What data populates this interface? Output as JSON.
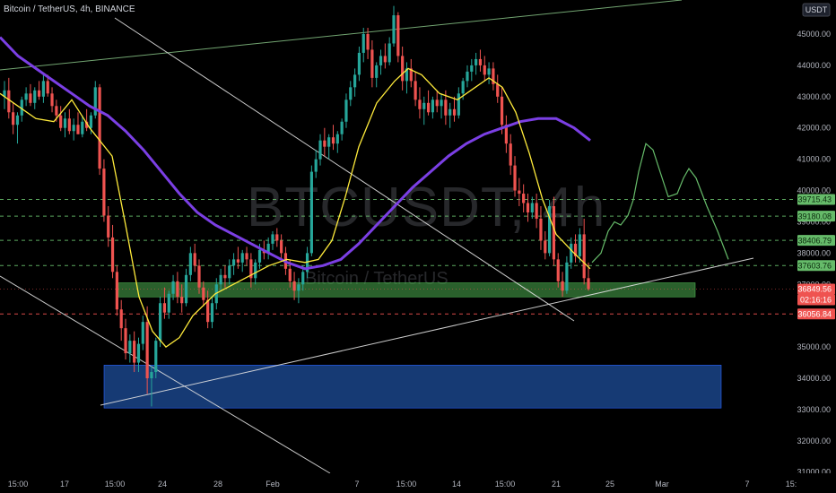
{
  "header": {
    "title": "Bitcoin / TetherUS, 4h, BINANCE",
    "currency": "USDT"
  },
  "watermark": {
    "symbol": "BTCUSDT, 4h",
    "name": "Bitcoin / TetherUS"
  },
  "colors": {
    "bg": "#000000",
    "up": "#26a69a",
    "down": "#ef5350",
    "ema_fast": "#ffeb3b",
    "ema_slow": "#7b3fe4",
    "support": "#4caf50",
    "demand": "#1e4d9b",
    "trend": "#e0e0e0",
    "green_dash": "#66bb6a",
    "red_dash": "#ef5350",
    "projection": "#66bb6a"
  },
  "chart_data": {
    "type": "candlestick",
    "title": "Bitcoin / TetherUS, 4h, BINANCE",
    "y_ticks": [
      31000,
      32000,
      33000,
      34000,
      35000,
      36000,
      37000,
      38000,
      39000,
      40000,
      41000,
      42000,
      43000,
      44000,
      45000
    ],
    "y_tick_labels": [
      "31000.00",
      "32000.00",
      "33000.00",
      "34000.00",
      "35000.00",
      "36000.00",
      "37000.00",
      "38000.00",
      "39000.00",
      "40000.00",
      "41000.00",
      "42000.00",
      "43000.00",
      "44000.00",
      "45000.00"
    ],
    "x_ticks": [
      "15:00",
      "17",
      "15:00",
      "24",
      "28",
      "Feb",
      "7",
      "15:00",
      "14",
      "15:00",
      "21",
      "25",
      "Mar",
      "7",
      "15:"
    ],
    "x_tick_x": [
      20,
      72,
      128,
      181,
      243,
      304,
      398,
      453,
      509,
      563,
      620,
      680,
      738,
      833,
      882
    ],
    "price_labels": [
      {
        "value": "39715.43",
        "type": "green"
      },
      {
        "value": "39180.08",
        "type": "green"
      },
      {
        "value": "38406.79",
        "type": "green"
      },
      {
        "value": "37603.76",
        "type": "green"
      },
      {
        "value": "36849.56",
        "type": "current"
      },
      {
        "value": "02:16:16",
        "type": "countdown"
      },
      {
        "value": "36056.84",
        "type": "red"
      }
    ],
    "levels_dashed": [
      {
        "price": 39715.43,
        "kind": "green"
      },
      {
        "price": 39180.08,
        "kind": "green"
      },
      {
        "price": 38406.79,
        "kind": "green"
      },
      {
        "price": 37603.76,
        "kind": "green"
      },
      {
        "price": 36056.84,
        "kind": "red"
      },
      {
        "price": 36849.56,
        "kind": "current"
      }
    ],
    "zones": [
      {
        "name": "support-zone",
        "from": 36600,
        "to": 37050,
        "x_start": "Jan 21",
        "x_end": "Mar 3",
        "color": "green"
      },
      {
        "name": "demand-zone",
        "from": 33050,
        "to": 34420,
        "x_start": "Jan 21",
        "x_end": "Mar 4",
        "color": "blue"
      }
    ],
    "candles": [
      [
        43000,
        43500,
        42600,
        43200
      ],
      [
        43200,
        43600,
        42300,
        42500
      ],
      [
        42500,
        42800,
        41800,
        42100
      ],
      [
        42100,
        42500,
        41500,
        42400
      ],
      [
        42400,
        43000,
        42200,
        42900
      ],
      [
        42900,
        43300,
        42700,
        43100
      ],
      [
        43100,
        43400,
        42700,
        42800
      ],
      [
        42800,
        43300,
        42600,
        43200
      ],
      [
        43200,
        43500,
        42900,
        43000
      ],
      [
        43000,
        43700,
        42800,
        43500
      ],
      [
        43500,
        43700,
        43000,
        43100
      ],
      [
        43100,
        43300,
        42500,
        42700
      ],
      [
        42700,
        42900,
        42200,
        42400
      ],
      [
        42400,
        42700,
        41900,
        42000
      ],
      [
        42000,
        42500,
        41700,
        42300
      ],
      [
        42300,
        42600,
        41800,
        41900
      ],
      [
        41900,
        42300,
        41600,
        42100
      ],
      [
        42100,
        42500,
        41800,
        41800
      ],
      [
        41800,
        42400,
        41700,
        42200
      ],
      [
        42200,
        42600,
        41900,
        42000
      ],
      [
        42000,
        42500,
        41800,
        42400
      ],
      [
        42400,
        43500,
        42300,
        43300
      ],
      [
        43300,
        43400,
        40500,
        40700
      ],
      [
        40700,
        41000,
        39000,
        39200
      ],
      [
        39200,
        39500,
        38200,
        38500
      ],
      [
        38500,
        38900,
        37200,
        37400
      ],
      [
        37400,
        37600,
        36000,
        36200
      ],
      [
        36200,
        36500,
        35200,
        35600
      ],
      [
        35600,
        35900,
        34600,
        34800
      ],
      [
        34800,
        35400,
        34500,
        35200
      ],
      [
        35200,
        35500,
        34200,
        34500
      ],
      [
        34500,
        35300,
        34200,
        35100
      ],
      [
        35100,
        36000,
        34900,
        35800
      ],
      [
        35800,
        36300,
        33500,
        34000
      ],
      [
        34000,
        34400,
        33100,
        34200
      ],
      [
        34200,
        35300,
        34000,
        35200
      ],
      [
        35200,
        36600,
        35000,
        36400
      ],
      [
        36400,
        36900,
        35900,
        36100
      ],
      [
        36100,
        36800,
        35900,
        36700
      ],
      [
        36700,
        37300,
        36500,
        37100
      ],
      [
        37100,
        37400,
        36400,
        36600
      ],
      [
        36600,
        37000,
        36100,
        36400
      ],
      [
        36400,
        37500,
        36300,
        37300
      ],
      [
        37300,
        38200,
        37100,
        38000
      ],
      [
        38000,
        38300,
        37400,
        37600
      ],
      [
        37600,
        37800,
        36700,
        36900
      ],
      [
        36900,
        37100,
        36300,
        36500
      ],
      [
        36500,
        36800,
        35600,
        35800
      ],
      [
        35800,
        36600,
        35600,
        36400
      ],
      [
        36400,
        37200,
        36200,
        37000
      ],
      [
        37000,
        37500,
        36800,
        37300
      ],
      [
        37300,
        37600,
        36900,
        37200
      ],
      [
        37200,
        37800,
        37000,
        37600
      ],
      [
        37600,
        38000,
        37300,
        37800
      ],
      [
        37800,
        38200,
        37500,
        37700
      ],
      [
        37700,
        38100,
        37400,
        38000
      ],
      [
        38000,
        38200,
        37600,
        37800
      ],
      [
        37800,
        38000,
        36900,
        37200
      ],
      [
        37200,
        37800,
        37000,
        37700
      ],
      [
        37700,
        38300,
        37500,
        38100
      ],
      [
        38100,
        38400,
        37800,
        38000
      ],
      [
        38000,
        38500,
        37800,
        38300
      ],
      [
        38300,
        38700,
        38100,
        38600
      ],
      [
        38600,
        38800,
        38200,
        38400
      ],
      [
        38400,
        38600,
        37800,
        38000
      ],
      [
        38000,
        38200,
        37300,
        37500
      ],
      [
        37500,
        37800,
        36900,
        37100
      ],
      [
        37100,
        37400,
        36500,
        36800
      ],
      [
        36800,
        37200,
        36400,
        37000
      ],
      [
        37000,
        37600,
        36800,
        37400
      ],
      [
        37400,
        38200,
        37200,
        38000
      ],
      [
        38000,
        40800,
        37900,
        40600
      ],
      [
        40600,
        41300,
        40400,
        41000
      ],
      [
        41000,
        41800,
        40800,
        41600
      ],
      [
        41600,
        42000,
        41100,
        41400
      ],
      [
        41400,
        41800,
        41000,
        41700
      ],
      [
        41700,
        42100,
        41300,
        41500
      ],
      [
        41500,
        41900,
        41200,
        41800
      ],
      [
        41800,
        42300,
        41600,
        42200
      ],
      [
        42200,
        43100,
        42000,
        42900
      ],
      [
        42900,
        43500,
        42700,
        43300
      ],
      [
        43300,
        43900,
        43000,
        43700
      ],
      [
        43700,
        44600,
        43500,
        44400
      ],
      [
        44400,
        45200,
        44100,
        45000
      ],
      [
        45000,
        45200,
        44200,
        44500
      ],
      [
        44500,
        44800,
        43300,
        43600
      ],
      [
        43600,
        44100,
        43300,
        44000
      ],
      [
        44000,
        44500,
        43700,
        44300
      ],
      [
        44300,
        44700,
        43900,
        44100
      ],
      [
        44100,
        44900,
        44000,
        44700
      ],
      [
        44700,
        45900,
        44600,
        45600
      ],
      [
        45600,
        45700,
        44100,
        44300
      ],
      [
        44300,
        44600,
        43200,
        43500
      ],
      [
        43500,
        44100,
        43100,
        43900
      ],
      [
        43900,
        44200,
        43300,
        43500
      ],
      [
        43500,
        43800,
        42700,
        42900
      ],
      [
        42900,
        43300,
        42300,
        42600
      ],
      [
        42600,
        43000,
        42100,
        42800
      ],
      [
        42800,
        43200,
        42400,
        42500
      ],
      [
        42500,
        43000,
        42300,
        42900
      ],
      [
        42900,
        43200,
        42500,
        42700
      ],
      [
        42700,
        43100,
        42300,
        42900
      ],
      [
        42900,
        43200,
        42100,
        42400
      ],
      [
        42400,
        42800,
        42000,
        42600
      ],
      [
        42600,
        43000,
        42200,
        42400
      ],
      [
        42400,
        43300,
        42300,
        43100
      ],
      [
        43100,
        43600,
        42900,
        43500
      ],
      [
        43500,
        44000,
        43300,
        43800
      ],
      [
        43800,
        44200,
        43500,
        44000
      ],
      [
        44000,
        44400,
        43700,
        44200
      ],
      [
        44200,
        44500,
        43800,
        44000
      ],
      [
        44000,
        44300,
        43500,
        43700
      ],
      [
        43700,
        44100,
        43400,
        43900
      ],
      [
        43900,
        44100,
        43200,
        43400
      ],
      [
        43400,
        43700,
        42800,
        43000
      ],
      [
        43000,
        43300,
        41800,
        42100
      ],
      [
        42100,
        42400,
        41200,
        41500
      ],
      [
        41500,
        41800,
        40500,
        40800
      ],
      [
        40800,
        41100,
        39800,
        40000
      ],
      [
        40000,
        40400,
        39500,
        39900
      ],
      [
        39900,
        40200,
        39300,
        39600
      ],
      [
        39600,
        39900,
        39000,
        39300
      ],
      [
        39300,
        39800,
        39100,
        39600
      ],
      [
        39600,
        39900,
        38800,
        39100
      ],
      [
        39100,
        39500,
        38100,
        38400
      ],
      [
        38400,
        38700,
        37800,
        38000
      ],
      [
        38000,
        39700,
        37900,
        39500
      ],
      [
        39500,
        39800,
        37600,
        37800
      ],
      [
        37800,
        38000,
        36900,
        37100
      ],
      [
        37100,
        37400,
        36600,
        36800
      ],
      [
        36800,
        37900,
        36700,
        37700
      ],
      [
        37700,
        38500,
        37500,
        38300
      ],
      [
        38300,
        38600,
        37700,
        37900
      ],
      [
        37900,
        38800,
        37700,
        38600
      ],
      [
        38600,
        39100,
        37000,
        37200
      ],
      [
        37200,
        37700,
        36800,
        36850
      ]
    ],
    "ema_fast": [
      [
        0,
        43100
      ],
      [
        20,
        42700
      ],
      [
        40,
        42300
      ],
      [
        60,
        42200
      ],
      [
        80,
        42900
      ],
      [
        100,
        42000
      ],
      [
        125,
        41100
      ],
      [
        140,
        38900
      ],
      [
        155,
        36600
      ],
      [
        170,
        35500
      ],
      [
        185,
        35000
      ],
      [
        200,
        35300
      ],
      [
        215,
        36000
      ],
      [
        240,
        36700
      ],
      [
        260,
        37000
      ],
      [
        280,
        37300
      ],
      [
        300,
        37600
      ],
      [
        320,
        37800
      ],
      [
        340,
        37700
      ],
      [
        355,
        37800
      ],
      [
        370,
        38400
      ],
      [
        385,
        39800
      ],
      [
        400,
        41400
      ],
      [
        420,
        42800
      ],
      [
        440,
        43500
      ],
      [
        455,
        43900
      ],
      [
        470,
        43700
      ],
      [
        490,
        43100
      ],
      [
        510,
        42900
      ],
      [
        530,
        43300
      ],
      [
        545,
        43600
      ],
      [
        560,
        43300
      ],
      [
        575,
        42500
      ],
      [
        590,
        41200
      ],
      [
        605,
        39700
      ],
      [
        620,
        38600
      ],
      [
        640,
        38000
      ],
      [
        658,
        37500
      ]
    ],
    "ema_slow": [
      [
        0,
        44900
      ],
      [
        20,
        44300
      ],
      [
        40,
        43900
      ],
      [
        60,
        43500
      ],
      [
        80,
        43100
      ],
      [
        100,
        42700
      ],
      [
        120,
        42400
      ],
      [
        140,
        41900
      ],
      [
        160,
        41300
      ],
      [
        180,
        40600
      ],
      [
        200,
        39900
      ],
      [
        220,
        39300
      ],
      [
        240,
        38900
      ],
      [
        260,
        38600
      ],
      [
        280,
        38300
      ],
      [
        300,
        38000
      ],
      [
        320,
        37700
      ],
      [
        340,
        37500
      ],
      [
        360,
        37600
      ],
      [
        380,
        37800
      ],
      [
        400,
        38300
      ],
      [
        420,
        38900
      ],
      [
        440,
        39500
      ],
      [
        460,
        40100
      ],
      [
        480,
        40600
      ],
      [
        500,
        41100
      ],
      [
        520,
        41500
      ],
      [
        540,
        41800
      ],
      [
        560,
        42000
      ],
      [
        580,
        42200
      ],
      [
        600,
        42300
      ],
      [
        620,
        42300
      ],
      [
        640,
        42000
      ],
      [
        658,
        41600
      ]
    ],
    "projection": [
      [
        660,
        37700
      ],
      [
        670,
        38000
      ],
      [
        678,
        38700
      ],
      [
        685,
        39000
      ],
      [
        692,
        38900
      ],
      [
        700,
        39200
      ],
      [
        706,
        39700
      ],
      [
        712,
        40600
      ],
      [
        720,
        41500
      ],
      [
        728,
        41300
      ],
      [
        737,
        40500
      ],
      [
        745,
        39800
      ],
      [
        755,
        39900
      ],
      [
        762,
        40400
      ],
      [
        768,
        40700
      ],
      [
        776,
        40400
      ],
      [
        788,
        39500
      ],
      [
        800,
        38700
      ],
      [
        812,
        37800
      ]
    ]
  }
}
